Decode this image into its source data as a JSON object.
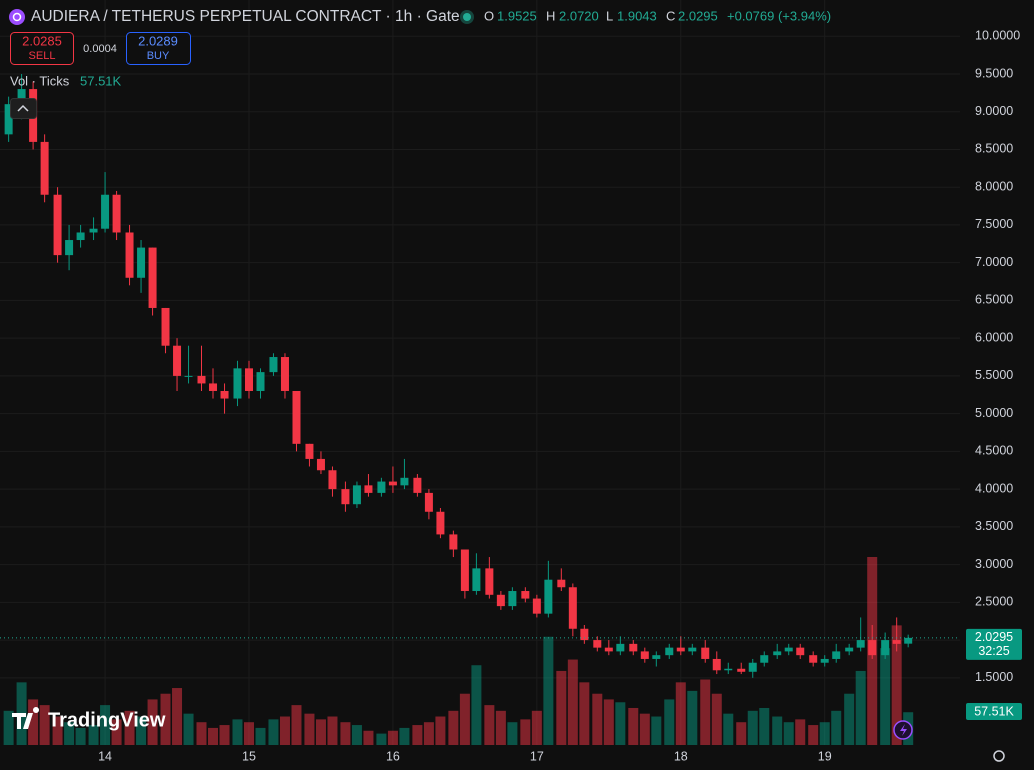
{
  "header": {
    "title": "AUDIERA / TETHERUS PERPETUAL CONTRACT · 1h · Gate",
    "ohlc": [
      {
        "key": "O",
        "value": 1.9525,
        "label": "1.9525"
      },
      {
        "key": "H",
        "value": 2.072,
        "label": "2.0720"
      },
      {
        "key": "L",
        "value": 1.9043,
        "label": "1.9043"
      },
      {
        "key": "C",
        "value": 2.0295,
        "label": "2.0295"
      }
    ],
    "change": "+0.0769 (+3.94%)"
  },
  "trade": {
    "sell_price": 2.0285,
    "sell_label": "SELL",
    "spread": 0.0004,
    "buy_price": 2.0289,
    "buy_label": "BUY"
  },
  "volume_legend": {
    "label": "Vol · Ticks"
  },
  "branding": "TradingView",
  "chart_data": {
    "type": "candlestick",
    "up_color": "#089981",
    "down_color": "#f23645",
    "x": [
      13.33,
      13.42,
      13.5,
      13.58,
      13.67,
      13.75,
      13.83,
      13.92,
      14,
      14.08,
      14.17,
      14.25,
      14.33,
      14.42,
      14.5,
      14.58,
      14.67,
      14.75,
      14.83,
      14.92,
      15,
      15.08,
      15.17,
      15.25,
      15.33,
      15.42,
      15.5,
      15.58,
      15.67,
      15.75,
      15.83,
      15.92,
      16,
      16.08,
      16.17,
      16.25,
      16.33,
      16.42,
      16.5,
      16.58,
      16.67,
      16.75,
      16.83,
      16.92,
      17,
      17.08,
      17.17,
      17.25,
      17.33,
      17.42,
      17.5,
      17.58,
      17.67,
      17.75,
      17.83,
      17.92,
      18,
      18.08,
      18.17,
      18.25,
      18.33,
      18.42,
      18.5,
      18.58,
      18.67,
      18.75,
      18.83,
      18.92,
      19,
      19.08,
      19.17,
      19.25,
      19.33,
      19.42,
      19.5,
      19.58
    ],
    "open": [
      8.7,
      9.1,
      9.3,
      8.6,
      7.9,
      7.1,
      7.3,
      7.4,
      7.45,
      7.9,
      7.4,
      6.8,
      7.2,
      6.4,
      5.9,
      5.5,
      5.5,
      5.4,
      5.3,
      5.2,
      5.6,
      5.3,
      5.55,
      5.75,
      5.3,
      4.6,
      4.4,
      4.25,
      4.0,
      3.8,
      4.05,
      3.95,
      4.1,
      4.05,
      4.15,
      3.95,
      3.7,
      3.4,
      3.2,
      2.65,
      2.95,
      2.6,
      2.45,
      2.65,
      2.55,
      2.35,
      2.8,
      2.7,
      2.15,
      2.0,
      1.9,
      1.85,
      1.95,
      1.85,
      1.75,
      1.8,
      1.9,
      1.85,
      1.9,
      1.75,
      1.6,
      1.62,
      1.58,
      1.7,
      1.8,
      1.85,
      1.9,
      1.8,
      1.7,
      1.75,
      1.85,
      1.9,
      2.0,
      1.8,
      2.0,
      1.9525
    ],
    "high": [
      9.2,
      9.5,
      9.4,
      8.7,
      8.0,
      7.5,
      7.5,
      7.6,
      8.2,
      7.95,
      7.5,
      7.3,
      7.2,
      6.4,
      6.0,
      5.9,
      5.9,
      5.6,
      5.4,
      5.7,
      5.7,
      5.6,
      5.8,
      5.8,
      5.3,
      4.6,
      4.5,
      4.3,
      4.1,
      4.1,
      4.2,
      4.15,
      4.3,
      4.4,
      4.2,
      4.0,
      3.75,
      3.45,
      3.2,
      3.15,
      3.1,
      2.65,
      2.7,
      2.7,
      2.6,
      3.05,
      2.95,
      2.75,
      2.2,
      2.05,
      2.0,
      2.05,
      2.0,
      1.9,
      1.85,
      1.95,
      2.05,
      1.95,
      2.0,
      1.85,
      1.7,
      1.7,
      1.75,
      1.85,
      1.95,
      1.95,
      1.95,
      1.85,
      1.8,
      1.95,
      1.95,
      2.3,
      2.2,
      2.1,
      2.3,
      2.072
    ],
    "low": [
      8.6,
      8.9,
      8.5,
      7.8,
      7.0,
      6.9,
      7.2,
      7.3,
      7.4,
      7.3,
      6.7,
      6.6,
      6.3,
      5.8,
      5.3,
      5.4,
      5.3,
      5.2,
      5.0,
      5.1,
      5.2,
      5.2,
      5.5,
      5.2,
      4.5,
      4.3,
      4.2,
      3.9,
      3.7,
      3.75,
      3.9,
      3.9,
      3.95,
      4.0,
      3.9,
      3.6,
      3.35,
      3.1,
      2.55,
      2.6,
      2.55,
      2.4,
      2.4,
      2.5,
      2.3,
      2.3,
      2.65,
      2.05,
      1.95,
      1.85,
      1.8,
      1.8,
      1.8,
      1.7,
      1.65,
      1.75,
      1.8,
      1.8,
      1.7,
      1.55,
      1.55,
      1.55,
      1.5,
      1.65,
      1.75,
      1.8,
      1.75,
      1.65,
      1.65,
      1.7,
      1.8,
      1.85,
      1.75,
      1.75,
      1.85,
      1.9043
    ],
    "close": [
      9.1,
      9.3,
      8.6,
      7.9,
      7.1,
      7.3,
      7.4,
      7.45,
      7.9,
      7.4,
      6.8,
      7.2,
      6.4,
      5.9,
      5.5,
      5.5,
      5.4,
      5.3,
      5.2,
      5.6,
      5.3,
      5.55,
      5.75,
      5.3,
      4.6,
      4.4,
      4.25,
      4.0,
      3.8,
      4.05,
      3.95,
      4.1,
      4.05,
      4.15,
      3.95,
      3.7,
      3.4,
      3.2,
      2.65,
      2.95,
      2.6,
      2.45,
      2.65,
      2.55,
      2.35,
      2.8,
      2.7,
      2.15,
      2.0,
      1.9,
      1.85,
      1.95,
      1.85,
      1.75,
      1.8,
      1.9,
      1.85,
      1.9,
      1.75,
      1.6,
      1.62,
      1.58,
      1.7,
      1.8,
      1.85,
      1.9,
      1.8,
      1.7,
      1.75,
      1.85,
      1.9,
      2.0,
      1.8,
      2.0,
      1.95,
      2.0295
    ],
    "volume": [
      60000,
      110000,
      80000,
      70000,
      50000,
      40000,
      30000,
      35000,
      70000,
      45000,
      60000,
      50000,
      80000,
      90000,
      100000,
      55000,
      40000,
      30000,
      35000,
      45000,
      40000,
      30000,
      45000,
      50000,
      70000,
      55000,
      45000,
      50000,
      40000,
      35000,
      25000,
      20000,
      25000,
      30000,
      35000,
      40000,
      50000,
      60000,
      90000,
      140000,
      70000,
      60000,
      40000,
      45000,
      60000,
      190000,
      130000,
      150000,
      110000,
      90000,
      80000,
      75000,
      65000,
      55000,
      50000,
      80000,
      110000,
      95000,
      115000,
      90000,
      55000,
      40000,
      60000,
      65000,
      50000,
      40000,
      45000,
      35000,
      40000,
      60000,
      90000,
      130000,
      330000,
      170000,
      210000,
      57510
    ],
    "last_volume_label": "57.51K",
    "last_price": {
      "value": 2.0295,
      "label": "2.0295"
    },
    "countdown": "32:25",
    "xlim": [
      13.27,
      19.94
    ],
    "xticks": [
      14,
      15,
      16,
      17,
      18,
      19
    ],
    "ylim": [
      0.61,
      10.48
    ],
    "yticks": [
      {
        "value": 1.5,
        "label": "1.5000"
      },
      {
        "value": 2,
        "label": "2.0000"
      },
      {
        "value": 2.5,
        "label": "2.5000"
      },
      {
        "value": 3,
        "label": "3.0000"
      },
      {
        "value": 3.5,
        "label": "3.5000"
      },
      {
        "value": 4,
        "label": "4.0000"
      },
      {
        "value": 4.5,
        "label": "4.5000"
      },
      {
        "value": 5,
        "label": "5.0000"
      },
      {
        "value": 5.5,
        "label": "5.5000"
      },
      {
        "value": 6,
        "label": "6.0000"
      },
      {
        "value": 6.5,
        "label": "6.5000"
      },
      {
        "value": 7,
        "label": "7.0000"
      },
      {
        "value": 7.5,
        "label": "7.5000"
      },
      {
        "value": 8,
        "label": "8.0000"
      },
      {
        "value": 8.5,
        "label": "8.5000"
      },
      {
        "value": 9,
        "label": "9.0000"
      },
      {
        "value": 9.5,
        "label": "9.5000"
      },
      {
        "value": 10,
        "label": "10.0000"
      }
    ],
    "grid": true
  }
}
